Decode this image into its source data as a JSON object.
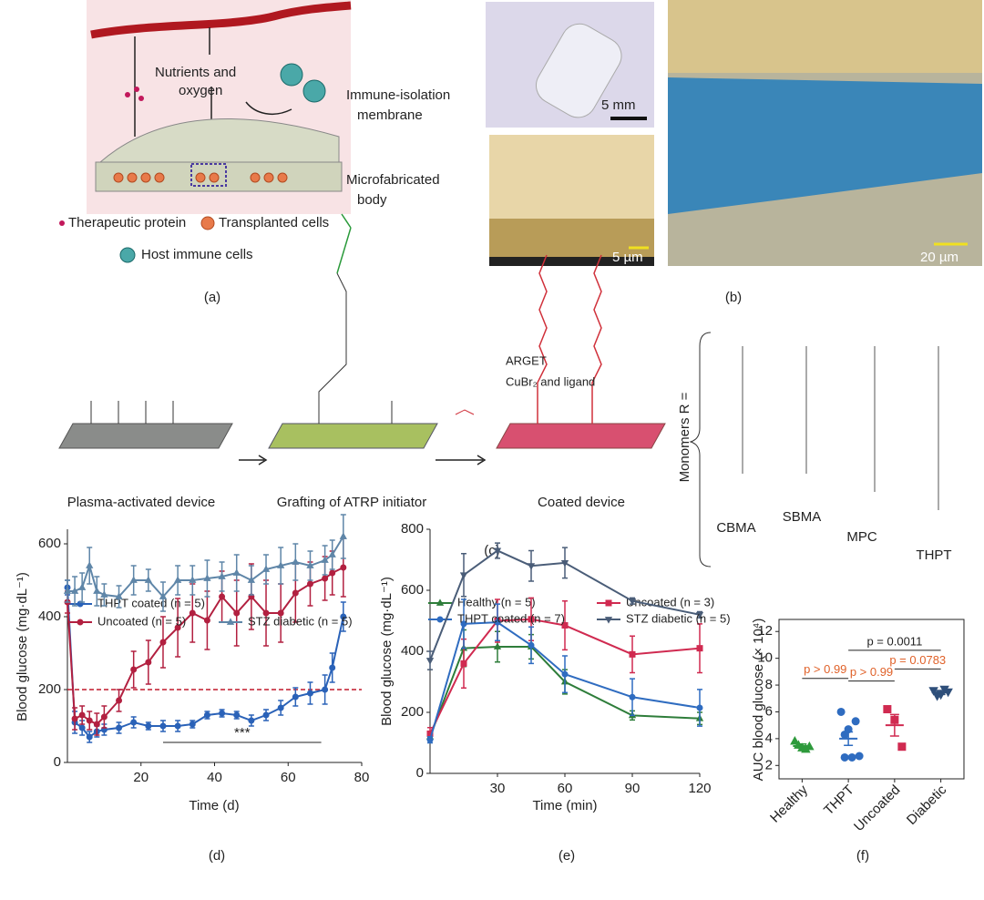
{
  "panels": {
    "a": {
      "label": "(a)",
      "nutrients": [
        "Nutrients and",
        "oxygen"
      ],
      "membrane": [
        "Immune-isolation",
        "membrane"
      ],
      "body": [
        "Microfabricated",
        "body"
      ],
      "protein": "Therapeutic protein",
      "cells": "Transplanted cells",
      "immune": "Host immune cells"
    },
    "b": {
      "label": "(b)",
      "scale_1": "5 mm",
      "scale_2": "5 µm",
      "scale_3": "20 µm"
    },
    "c": {
      "label": "(c)",
      "reagents": [
        "ARGET",
        "CuBr₂ and ligand"
      ],
      "steps": [
        "Plasma-activated device",
        "Grafting of ATRP initiator",
        "Coated device"
      ],
      "monomers_title": "Monomers R =",
      "monomers": [
        "CBMA",
        "SBMA",
        "MPC",
        "THPT"
      ]
    }
  },
  "chart_data": [
    {
      "type": "line",
      "panel_label": "(d)",
      "x_label": "Time (d)",
      "y_label": "Blood glucose (mg·dL⁻¹)",
      "x": [
        0,
        2,
        4,
        6,
        8,
        10,
        14,
        18,
        22,
        26,
        30,
        34,
        38,
        42,
        46,
        50,
        54,
        58,
        62,
        66,
        70,
        72,
        75
      ],
      "xlim": [
        0,
        80
      ],
      "xticks": [
        20,
        40,
        60,
        80
      ],
      "ylim": [
        0,
        640
      ],
      "yticks": [
        0,
        200,
        400,
        600
      ],
      "series": [
        {
          "name": "THPT coated (n = 5)",
          "color": "#2a62b8",
          "marker": "circle",
          "values": [
            480,
            110,
            95,
            70,
            85,
            90,
            95,
            110,
            100,
            100,
            100,
            105,
            130,
            135,
            130,
            115,
            130,
            150,
            180,
            190,
            200,
            260,
            400
          ],
          "errors": [
            20,
            30,
            20,
            15,
            15,
            15,
            15,
            15,
            10,
            15,
            15,
            10,
            10,
            10,
            10,
            15,
            15,
            20,
            25,
            30,
            40,
            40,
            40
          ]
        },
        {
          "name": "Uncoated (n = 5)",
          "color": "#b22040",
          "marker": "circle",
          "values": [
            440,
            120,
            130,
            115,
            105,
            125,
            170,
            255,
            275,
            330,
            370,
            410,
            390,
            455,
            410,
            455,
            410,
            410,
            465,
            490,
            505,
            520,
            535
          ],
          "errors": [
            30,
            30,
            25,
            25,
            30,
            30,
            30,
            50,
            60,
            70,
            80,
            80,
            80,
            70,
            90,
            90,
            90,
            80,
            80,
            60,
            60,
            60,
            80
          ]
        },
        {
          "name": "STZ diabetic (n = 5)",
          "color": "#5f86a8",
          "marker": "triangle",
          "values": [
            470,
            470,
            480,
            540,
            470,
            460,
            455,
            500,
            500,
            455,
            500,
            500,
            505,
            510,
            520,
            500,
            530,
            540,
            550,
            540,
            555,
            570,
            620
          ],
          "errors": [
            30,
            40,
            40,
            50,
            40,
            30,
            30,
            40,
            30,
            40,
            40,
            40,
            50,
            40,
            50,
            40,
            40,
            50,
            50,
            40,
            40,
            40,
            60
          ]
        }
      ],
      "reference_line": {
        "value": 200,
        "color": "#c0182c"
      },
      "significance": {
        "label": "***",
        "x_start": 26,
        "x_end": 69,
        "y": 55
      }
    },
    {
      "type": "line",
      "panel_label": "(e)",
      "x_label": "Time (min)",
      "y_label": "Blood glucose (mg·dL⁻¹)",
      "x": [
        0,
        15,
        30,
        45,
        60,
        90,
        120
      ],
      "xlim": [
        0,
        120
      ],
      "xticks": [
        30,
        60,
        90,
        120
      ],
      "ylim": [
        0,
        800
      ],
      "yticks": [
        0,
        200,
        400,
        600,
        800
      ],
      "series": [
        {
          "name": "Healthy (n = 5)",
          "color": "#2e7d3a",
          "marker": "triangle",
          "values": [
            120,
            410,
            415,
            415,
            300,
            190,
            180
          ],
          "errors": [
            10,
            60,
            50,
            40,
            40,
            15,
            20
          ]
        },
        {
          "name": "Uncoated (n = 3)",
          "color": "#d02a50",
          "marker": "square",
          "values": [
            130,
            360,
            500,
            505,
            485,
            390,
            410
          ],
          "errors": [
            20,
            80,
            70,
            70,
            80,
            60,
            80
          ]
        },
        {
          "name": "THPT coated (n = 7)",
          "color": "#2f6cc0",
          "marker": "circle",
          "values": [
            110,
            490,
            495,
            420,
            325,
            250,
            215
          ],
          "errors": [
            10,
            80,
            60,
            60,
            60,
            60,
            60
          ]
        },
        {
          "name": "STZ diabetic (n = 5)",
          "color": "#4a5d78",
          "marker": "triangle-down",
          "values": [
            370,
            650,
            730,
            680,
            690,
            565,
            520
          ],
          "errors": [
            30,
            70,
            25,
            50,
            50,
            10,
            10
          ]
        }
      ]
    },
    {
      "type": "dot",
      "panel_label": "(f)",
      "y_label": "AUC blood glucose (× 10⁴)",
      "categories": [
        "Healthy",
        "THPT",
        "Uncoated",
        "Diabetic"
      ],
      "ylim": [
        1,
        12.9
      ],
      "yticks": [
        2,
        4,
        6,
        8,
        10,
        12
      ],
      "colors": [
        "#2e9a3c",
        "#2f6cc0",
        "#d02a50",
        "#2e4f7a"
      ],
      "markers": [
        "triangle",
        "circle",
        "square",
        "triangle-down"
      ],
      "points": [
        [
          3.8,
          3.3,
          3.4,
          3.5,
          3.2
        ],
        [
          6.0,
          4.7,
          5.3,
          4.3,
          2.6,
          2.7,
          2.6
        ],
        [
          6.2,
          5.4,
          3.4
        ],
        [
          7.6,
          7.3,
          7.5,
          7.2,
          7.7
        ]
      ],
      "means": [
        3.45,
        4.0,
        5.0,
        7.45
      ],
      "errors": [
        0.15,
        0.5,
        0.8,
        0.15
      ],
      "annotations": [
        {
          "label": "p > 0.99",
          "from": 0,
          "to": 1,
          "y": 8.5,
          "color": "#e0622a"
        },
        {
          "label": "p > 0.99",
          "from": 1,
          "to": 2,
          "y": 8.3,
          "color": "#e0622a"
        },
        {
          "label": "p = 0.0783",
          "from": 2,
          "to": 3,
          "y": 9.2,
          "color": "#e0622a"
        },
        {
          "label": "p = 0.0011",
          "from": 1,
          "to": 3,
          "y": 10.6,
          "color": "#222222"
        }
      ]
    }
  ]
}
